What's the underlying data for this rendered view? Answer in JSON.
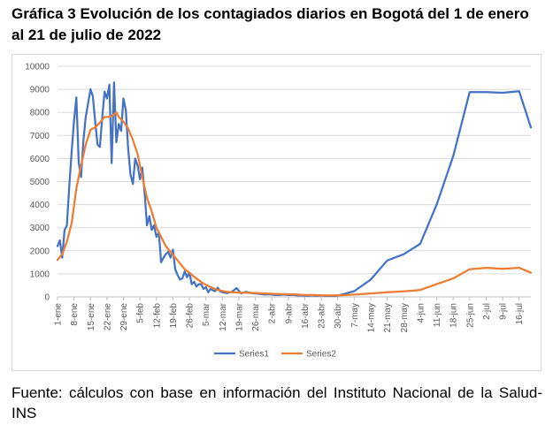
{
  "title": "Gráfica 3 Evolución de los contagiados diarios en Bogotá del 1 de enero al 21 de julio de 2022",
  "source": "Fuente: cálculos con base en información del Instituto Nacional de la Salud-INS",
  "colors": {
    "series1": "#4472C4",
    "series2": "#ED7D31",
    "grid": "#D9D9D9",
    "axis": "#BFBFBF",
    "text": "#595959"
  },
  "chart_data": {
    "type": "line",
    "grid": true,
    "legend_position": "bottom",
    "ylim": [
      0,
      10000
    ],
    "xlim": [
      0,
      201
    ],
    "yticks": [
      0,
      1000,
      2000,
      3000,
      4000,
      5000,
      6000,
      7000,
      8000,
      9000,
      10000
    ],
    "xticks": [
      {
        "x": 0,
        "label": "1-ene"
      },
      {
        "x": 7,
        "label": "8-ene"
      },
      {
        "x": 14,
        "label": "15-ene"
      },
      {
        "x": 21,
        "label": "22-ene"
      },
      {
        "x": 28,
        "label": "29-ene"
      },
      {
        "x": 35,
        "label": "5-feb"
      },
      {
        "x": 42,
        "label": "12-feb"
      },
      {
        "x": 49,
        "label": "19-feb"
      },
      {
        "x": 56,
        "label": "26-feb"
      },
      {
        "x": 63,
        "label": "5-mar"
      },
      {
        "x": 70,
        "label": "12-mar"
      },
      {
        "x": 77,
        "label": "19-mar"
      },
      {
        "x": 84,
        "label": "26-mar"
      },
      {
        "x": 91,
        "label": "2-abr"
      },
      {
        "x": 98,
        "label": "9-abr"
      },
      {
        "x": 105,
        "label": "16-abr"
      },
      {
        "x": 112,
        "label": "23-abr"
      },
      {
        "x": 119,
        "label": "30-abr"
      },
      {
        "x": 126,
        "label": "7-may"
      },
      {
        "x": 133,
        "label": "14-may"
      },
      {
        "x": 140,
        "label": "21-may"
      },
      {
        "x": 147,
        "label": "28-may"
      },
      {
        "x": 154,
        "label": "4-jun"
      },
      {
        "x": 161,
        "label": "11-jun"
      },
      {
        "x": 168,
        "label": "18-jun"
      },
      {
        "x": 175,
        "label": "25-jun"
      },
      {
        "x": 182,
        "label": "2-jul"
      },
      {
        "x": 189,
        "label": "9-jul"
      },
      {
        "x": 196,
        "label": "16-jul"
      }
    ],
    "series": [
      {
        "name": "Series1",
        "color": "#4472C4",
        "points": [
          [
            0,
            2200
          ],
          [
            1,
            2450
          ],
          [
            2,
            1700
          ],
          [
            3,
            2900
          ],
          [
            4,
            3100
          ],
          [
            5,
            4800
          ],
          [
            6,
            6300
          ],
          [
            7,
            7600
          ],
          [
            8,
            8650
          ],
          [
            9,
            5800
          ],
          [
            10,
            5200
          ],
          [
            11,
            6800
          ],
          [
            12,
            7800
          ],
          [
            13,
            8400
          ],
          [
            14,
            9000
          ],
          [
            15,
            8700
          ],
          [
            16,
            7600
          ],
          [
            17,
            6600
          ],
          [
            18,
            6500
          ],
          [
            19,
            7800
          ],
          [
            20,
            8900
          ],
          [
            21,
            8600
          ],
          [
            22,
            9200
          ],
          [
            23,
            5800
          ],
          [
            24,
            9300
          ],
          [
            25,
            6700
          ],
          [
            26,
            7500
          ],
          [
            27,
            7200
          ],
          [
            28,
            8600
          ],
          [
            29,
            8100
          ],
          [
            30,
            6400
          ],
          [
            31,
            5300
          ],
          [
            32,
            4900
          ],
          [
            33,
            6000
          ],
          [
            34,
            5700
          ],
          [
            35,
            5100
          ],
          [
            36,
            5600
          ],
          [
            37,
            4500
          ],
          [
            38,
            3100
          ],
          [
            39,
            3500
          ],
          [
            40,
            2900
          ],
          [
            41,
            3100
          ],
          [
            42,
            2600
          ],
          [
            43,
            2800
          ],
          [
            44,
            1500
          ],
          [
            45,
            1700
          ],
          [
            46,
            1850
          ],
          [
            47,
            1950
          ],
          [
            48,
            1700
          ],
          [
            49,
            2050
          ],
          [
            50,
            1200
          ],
          [
            51,
            950
          ],
          [
            52,
            750
          ],
          [
            53,
            800
          ],
          [
            54,
            1100
          ],
          [
            55,
            850
          ],
          [
            56,
            1050
          ],
          [
            57,
            550
          ],
          [
            58,
            650
          ],
          [
            59,
            450
          ],
          [
            60,
            550
          ],
          [
            61,
            550
          ],
          [
            62,
            350
          ],
          [
            63,
            420
          ],
          [
            64,
            200
          ],
          [
            65,
            350
          ],
          [
            66,
            280
          ],
          [
            67,
            250
          ],
          [
            68,
            400
          ],
          [
            69,
            250
          ],
          [
            70,
            200
          ],
          [
            72,
            170
          ],
          [
            74,
            220
          ],
          [
            76,
            380
          ],
          [
            78,
            150
          ],
          [
            80,
            220
          ],
          [
            82,
            170
          ],
          [
            84,
            150
          ],
          [
            86,
            130
          ],
          [
            88,
            100
          ],
          [
            90,
            110
          ],
          [
            92,
            90
          ],
          [
            94,
            80
          ],
          [
            96,
            100
          ],
          [
            98,
            80
          ],
          [
            100,
            90
          ],
          [
            102,
            60
          ],
          [
            104,
            70
          ],
          [
            106,
            50
          ],
          [
            108,
            70
          ],
          [
            110,
            50
          ],
          [
            112,
            60
          ],
          [
            114,
            40
          ],
          [
            116,
            50
          ],
          [
            118,
            40
          ],
          [
            120,
            80
          ],
          [
            126,
            250
          ],
          [
            133,
            750
          ],
          [
            140,
            1580
          ],
          [
            147,
            1850
          ],
          [
            154,
            2300
          ],
          [
            161,
            4000
          ],
          [
            168,
            6100
          ],
          [
            175,
            8880
          ],
          [
            182,
            8880
          ],
          [
            189,
            8850
          ],
          [
            196,
            8920
          ],
          [
            201,
            7350
          ]
        ]
      },
      {
        "name": "Series2",
        "color": "#ED7D31",
        "points": [
          [
            0,
            1600
          ],
          [
            2,
            1850
          ],
          [
            4,
            2400
          ],
          [
            6,
            3200
          ],
          [
            8,
            4700
          ],
          [
            10,
            5700
          ],
          [
            12,
            6600
          ],
          [
            14,
            7250
          ],
          [
            16,
            7350
          ],
          [
            18,
            7550
          ],
          [
            20,
            7800
          ],
          [
            22,
            7800
          ],
          [
            24,
            7900
          ],
          [
            25,
            8000
          ],
          [
            26,
            7800
          ],
          [
            28,
            7600
          ],
          [
            30,
            7300
          ],
          [
            32,
            6800
          ],
          [
            34,
            6200
          ],
          [
            36,
            5200
          ],
          [
            38,
            4300
          ],
          [
            40,
            3700
          ],
          [
            42,
            3000
          ],
          [
            44,
            2600
          ],
          [
            46,
            2200
          ],
          [
            48,
            1950
          ],
          [
            50,
            1700
          ],
          [
            52,
            1450
          ],
          [
            54,
            1200
          ],
          [
            56,
            1050
          ],
          [
            58,
            870
          ],
          [
            60,
            720
          ],
          [
            62,
            580
          ],
          [
            64,
            470
          ],
          [
            66,
            380
          ],
          [
            68,
            300
          ],
          [
            70,
            260
          ],
          [
            72,
            220
          ],
          [
            74,
            200
          ],
          [
            76,
            190
          ],
          [
            78,
            180
          ],
          [
            80,
            180
          ],
          [
            84,
            170
          ],
          [
            88,
            150
          ],
          [
            92,
            130
          ],
          [
            96,
            120
          ],
          [
            100,
            110
          ],
          [
            104,
            90
          ],
          [
            108,
            80
          ],
          [
            112,
            70
          ],
          [
            116,
            60
          ],
          [
            120,
            70
          ],
          [
            126,
            100
          ],
          [
            133,
            150
          ],
          [
            140,
            200
          ],
          [
            147,
            240
          ],
          [
            154,
            300
          ],
          [
            161,
            550
          ],
          [
            168,
            800
          ],
          [
            175,
            1200
          ],
          [
            182,
            1260
          ],
          [
            189,
            1220
          ],
          [
            196,
            1260
          ],
          [
            201,
            1050
          ]
        ]
      }
    ]
  }
}
